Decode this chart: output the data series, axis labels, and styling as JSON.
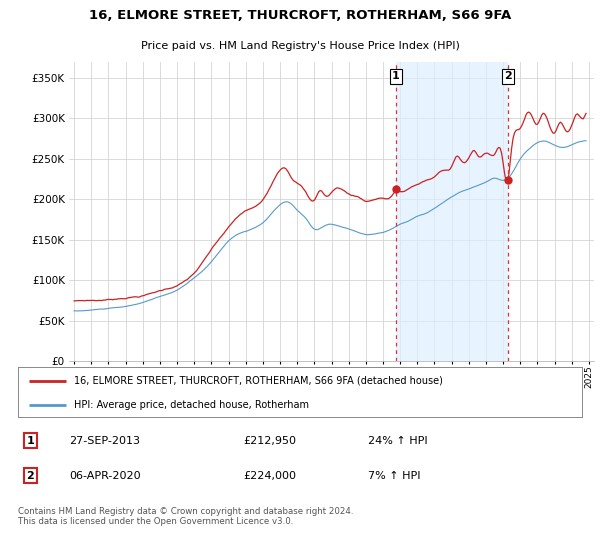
{
  "title": "16, ELMORE STREET, THURCROFT, ROTHERHAM, S66 9FA",
  "subtitle": "Price paid vs. HM Land Registry's House Price Index (HPI)",
  "ylim": [
    0,
    370000
  ],
  "yticks": [
    0,
    50000,
    100000,
    150000,
    200000,
    250000,
    300000,
    350000
  ],
  "legend_line1": "16, ELMORE STREET, THURCROFT, ROTHERHAM, S66 9FA (detached house)",
  "legend_line2": "HPI: Average price, detached house, Rotherham",
  "transaction1_label": "1",
  "transaction1_date": "27-SEP-2013",
  "transaction1_price": "£212,950",
  "transaction1_hpi": "24% ↑ HPI",
  "transaction2_label": "2",
  "transaction2_date": "06-APR-2020",
  "transaction2_price": "£224,000",
  "transaction2_hpi": "7% ↑ HPI",
  "footer": "Contains HM Land Registry data © Crown copyright and database right 2024.\nThis data is licensed under the Open Government Licence v3.0.",
  "line1_color": "#cc2222",
  "line2_color": "#5599cc",
  "fill_color": "#ddeeff",
  "vline_color": "#dd3333",
  "marker1_x": 2013.75,
  "marker2_x": 2020.27,
  "marker1_y": 212950,
  "marker2_y": 224000,
  "xlim_left": 1994.7,
  "xlim_right": 2025.3
}
